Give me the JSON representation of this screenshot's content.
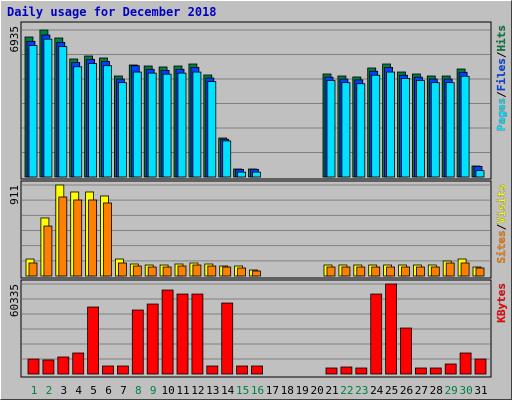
{
  "chart_data": {
    "type": "bar",
    "title": "Daily usage for December 2018",
    "categories": [
      "1",
      "2",
      "3",
      "4",
      "5",
      "6",
      "7",
      "8",
      "9",
      "10",
      "11",
      "12",
      "13",
      "14",
      "15",
      "16",
      "17",
      "18",
      "19",
      "20",
      "21",
      "22",
      "23",
      "24",
      "25",
      "26",
      "27",
      "28",
      "29",
      "30",
      "31"
    ],
    "category_colors": [
      "#008040",
      "#008040",
      "#000000",
      "#000000",
      "#000000",
      "#000000",
      "#000000",
      "#008040",
      "#008040",
      "#000000",
      "#000000",
      "#000000",
      "#000000",
      "#000000",
      "#008040",
      "#008040",
      "#000000",
      "#000000",
      "#000000",
      "#000000",
      "#000000",
      "#008040",
      "#008040",
      "#000000",
      "#000000",
      "#000000",
      "#000000",
      "#000000",
      "#008040",
      "#008040",
      "#000000"
    ],
    "legend_separator": "/",
    "panels": [
      {
        "ylim": [
          0,
          6935
        ],
        "yticks": [
          6935
        ],
        "series": [
          {
            "name": "Hits",
            "color": "#008040",
            "values": [
              6605,
              6935,
              6558,
              5567,
              5709,
              5614,
              4765,
              5284,
              5237,
              5190,
              5237,
              5331,
              4812,
              1840,
              377,
              377,
              0,
              0,
              0,
              0,
              4859,
              4765,
              4718,
              5142,
              5331,
              4954,
              4859,
              4765,
              4765,
              5095,
              519
            ]
          },
          {
            "name": "Files",
            "color": "#0040ff",
            "values": [
              6400,
              6700,
              6350,
              5400,
              5550,
              5450,
              4620,
              5250,
              5080,
              5030,
              5080,
              5170,
              4670,
              1780,
              360,
              360,
              0,
              0,
              0,
              0,
              4710,
              4620,
              4580,
              4990,
              5170,
              4800,
              4710,
              4620,
              4620,
              4940,
              500
            ]
          },
          {
            "name": "Pages",
            "color": "#00e0ff",
            "values": [
              6200,
              6500,
              6150,
              5200,
              5350,
              5250,
              4450,
              4950,
              4900,
              4850,
              4900,
              4950,
              4500,
              1700,
              230,
              230,
              0,
              0,
              0,
              0,
              4550,
              4450,
              4400,
              4800,
              4950,
              4650,
              4550,
              4450,
              4450,
              4750,
              300
            ]
          }
        ]
      },
      {
        "ylim": [
          0,
          911
        ],
        "yticks": [
          911
        ],
        "series": [
          {
            "name": "Visits",
            "color": "#ffff00",
            "values": [
              170,
              581,
              911,
              841,
              841,
              801,
              170,
              120,
              110,
              110,
              120,
              130,
              120,
              100,
              100,
              60,
              0,
              0,
              0,
              0,
              110,
              110,
              110,
              110,
              110,
              110,
              110,
              110,
              150,
              170,
              90
            ]
          },
          {
            "name": "Sites",
            "color": "#ff8000",
            "values": [
              130,
              500,
              791,
              761,
              761,
              731,
              130,
              100,
              90,
              90,
              100,
              110,
              100,
              90,
              80,
              50,
              0,
              0,
              0,
              0,
              90,
              90,
              90,
              90,
              90,
              90,
              90,
              90,
              130,
              130,
              80
            ]
          }
        ]
      },
      {
        "ylim": [
          0,
          60335
        ],
        "yticks": [
          60335
        ],
        "series": [
          {
            "name": "KBytes",
            "color": "#ff0000",
            "values": [
              10050,
              9380,
              11390,
              14070,
              44890,
              5360,
              5360,
              42880,
              46900,
              56280,
              53600,
              53600,
              5360,
              47570,
              5360,
              5360,
              0,
              0,
              0,
              0,
              4020,
              4690,
              4020,
              53600,
              60335,
              30820,
              4020,
              4020,
              6700,
              14070,
              10050
            ]
          }
        ]
      }
    ]
  }
}
